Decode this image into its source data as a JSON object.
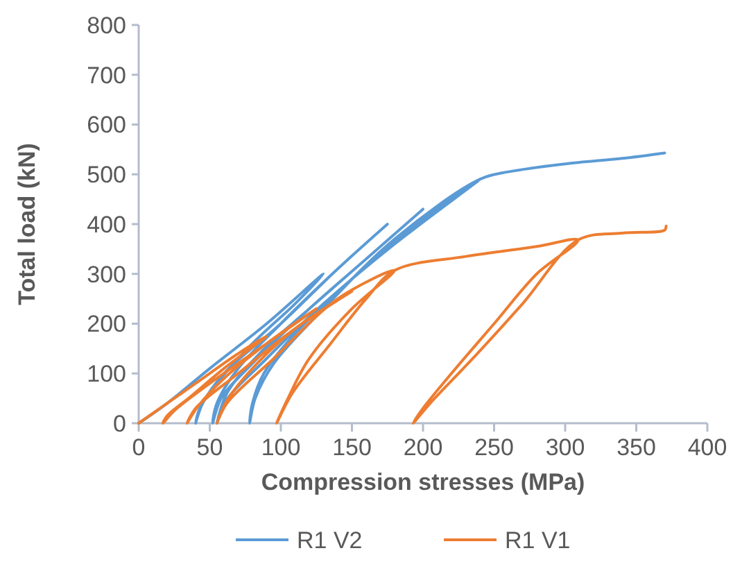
{
  "chart_data": {
    "type": "line",
    "xlabel": "Compression stresses (MPa)",
    "ylabel": "Total load (kN)",
    "xlim": [
      0,
      400
    ],
    "xticks": [
      0,
      50,
      100,
      150,
      200,
      250,
      300,
      350,
      400
    ],
    "ylim": [
      0,
      800
    ],
    "yticks": [
      0,
      100,
      200,
      300,
      400,
      500,
      600,
      700,
      800
    ],
    "grid": false,
    "legend": "bottom",
    "marker": "none",
    "line_style": "solid",
    "series": [
      {
        "name": "R1 V2",
        "color": "#5b9bd5",
        "x": [
          0,
          20,
          50,
          90,
          130,
          110,
          80,
          55,
          43,
          40,
          45,
          60,
          100,
          140,
          175,
          140,
          100,
          70,
          55,
          52,
          58,
          80,
          120,
          160,
          200,
          160,
          120,
          85,
          62,
          55,
          60,
          90,
          130,
          180,
          240,
          200,
          150,
          110,
          88,
          80,
          78,
          82,
          95,
          130,
          180,
          240,
          260,
          300,
          340,
          370
        ],
        "values": [
          0,
          40,
          110,
          200,
          300,
          240,
          160,
          80,
          30,
          0,
          40,
          100,
          200,
          310,
          400,
          310,
          200,
          110,
          40,
          0,
          50,
          120,
          230,
          330,
          430,
          330,
          230,
          140,
          60,
          0,
          40,
          130,
          240,
          360,
          490,
          410,
          290,
          180,
          100,
          40,
          0,
          50,
          120,
          230,
          370,
          490,
          505,
          521,
          532,
          543
        ]
      },
      {
        "name": "R1 V1",
        "color": "#ed7d31",
        "x": [
          0,
          15,
          40,
          70,
          90,
          60,
          35,
          20,
          17,
          25,
          50,
          90,
          125,
          90,
          60,
          42,
          34,
          40,
          70,
          110,
          150,
          110,
          80,
          62,
          55,
          62,
          95,
          140,
          180,
          150,
          120,
          105,
          97,
          108,
          135,
          160,
          180,
          230,
          280,
          309,
          280,
          250,
          220,
          200,
          193,
          205,
          235,
          270,
          309,
          340,
          370,
          371
        ],
        "values": [
          0,
          30,
          80,
          140,
          175,
          110,
          50,
          15,
          0,
          25,
          80,
          160,
          230,
          160,
          90,
          35,
          0,
          30,
          100,
          190,
          265,
          190,
          110,
          45,
          0,
          40,
          130,
          250,
          307,
          230,
          130,
          50,
          0,
          60,
          160,
          250,
          307,
          335,
          355,
          368,
          300,
          200,
          100,
          30,
          0,
          40,
          130,
          240,
          368,
          382,
          388,
          396
        ]
      }
    ]
  }
}
